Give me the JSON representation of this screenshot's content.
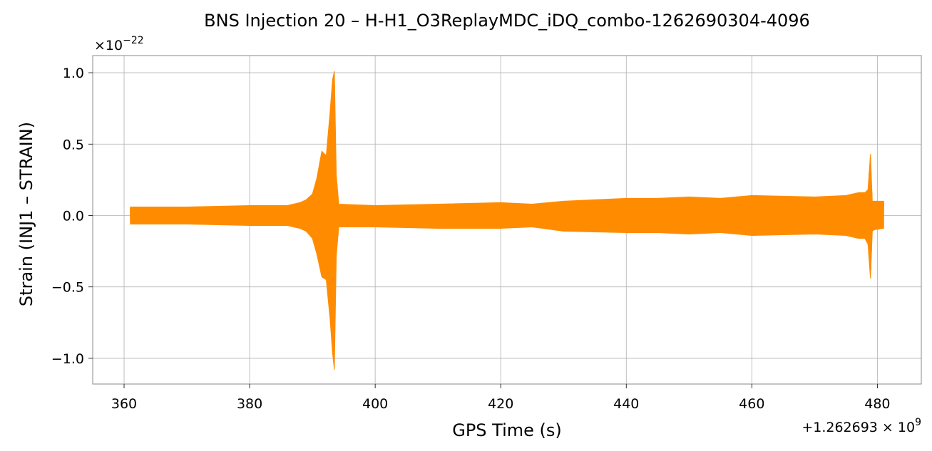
{
  "chart_data": {
    "type": "line",
    "title": "BNS Injection 20 – H-H1_O3ReplayMDC_iDQ_combo-1262690304-4096",
    "xlabel": "GPS Time (s)",
    "ylabel": "Strain (INJ1 – STRAIN)",
    "x_offset_label": "+1.262693 × 10",
    "x_offset_exponent": "9",
    "y_multiplier_label": "×10",
    "y_multiplier_exponent": "−22",
    "xlim": [
      355,
      487
    ],
    "ylim": [
      -1.18,
      1.12
    ],
    "x_ticks": [
      360,
      380,
      400,
      420,
      440,
      460,
      480
    ],
    "x_tick_labels": [
      "360",
      "380",
      "400",
      "420",
      "440",
      "460",
      "480"
    ],
    "y_ticks": [
      -1.0,
      -0.5,
      0.0,
      0.5,
      1.0
    ],
    "y_tick_labels": [
      "−1.0",
      "−0.5",
      "0.0",
      "0.5",
      "1.0"
    ],
    "grid": true,
    "series": [
      {
        "color": "#ff8c00",
        "envelope": {
          "x": [
            361,
            370,
            380,
            386,
            388,
            389,
            390,
            390.7,
            391.5,
            392.2,
            392.8,
            393.2,
            393.5,
            393.8,
            394.2,
            400,
            410,
            420,
            425,
            430,
            440,
            445,
            450,
            455,
            460,
            470,
            475,
            477,
            478,
            478.5,
            478.9,
            479.2,
            479.5,
            481
          ],
          "upper": [
            0.06,
            0.06,
            0.07,
            0.07,
            0.09,
            0.11,
            0.15,
            0.26,
            0.45,
            0.42,
            0.72,
            0.95,
            1.01,
            0.28,
            0.08,
            0.07,
            0.08,
            0.09,
            0.08,
            0.1,
            0.12,
            0.12,
            0.13,
            0.12,
            0.14,
            0.13,
            0.14,
            0.16,
            0.16,
            0.18,
            0.43,
            0.1,
            0.1,
            0.1
          ],
          "lower": [
            -0.06,
            -0.06,
            -0.07,
            -0.07,
            -0.09,
            -0.11,
            -0.16,
            -0.27,
            -0.43,
            -0.45,
            -0.72,
            -0.96,
            -1.08,
            -0.28,
            -0.08,
            -0.08,
            -0.09,
            -0.09,
            -0.08,
            -0.11,
            -0.12,
            -0.12,
            -0.13,
            -0.12,
            -0.14,
            -0.13,
            -0.14,
            -0.16,
            -0.16,
            -0.2,
            -0.44,
            -0.11,
            -0.1,
            -0.09
          ]
        }
      }
    ]
  }
}
